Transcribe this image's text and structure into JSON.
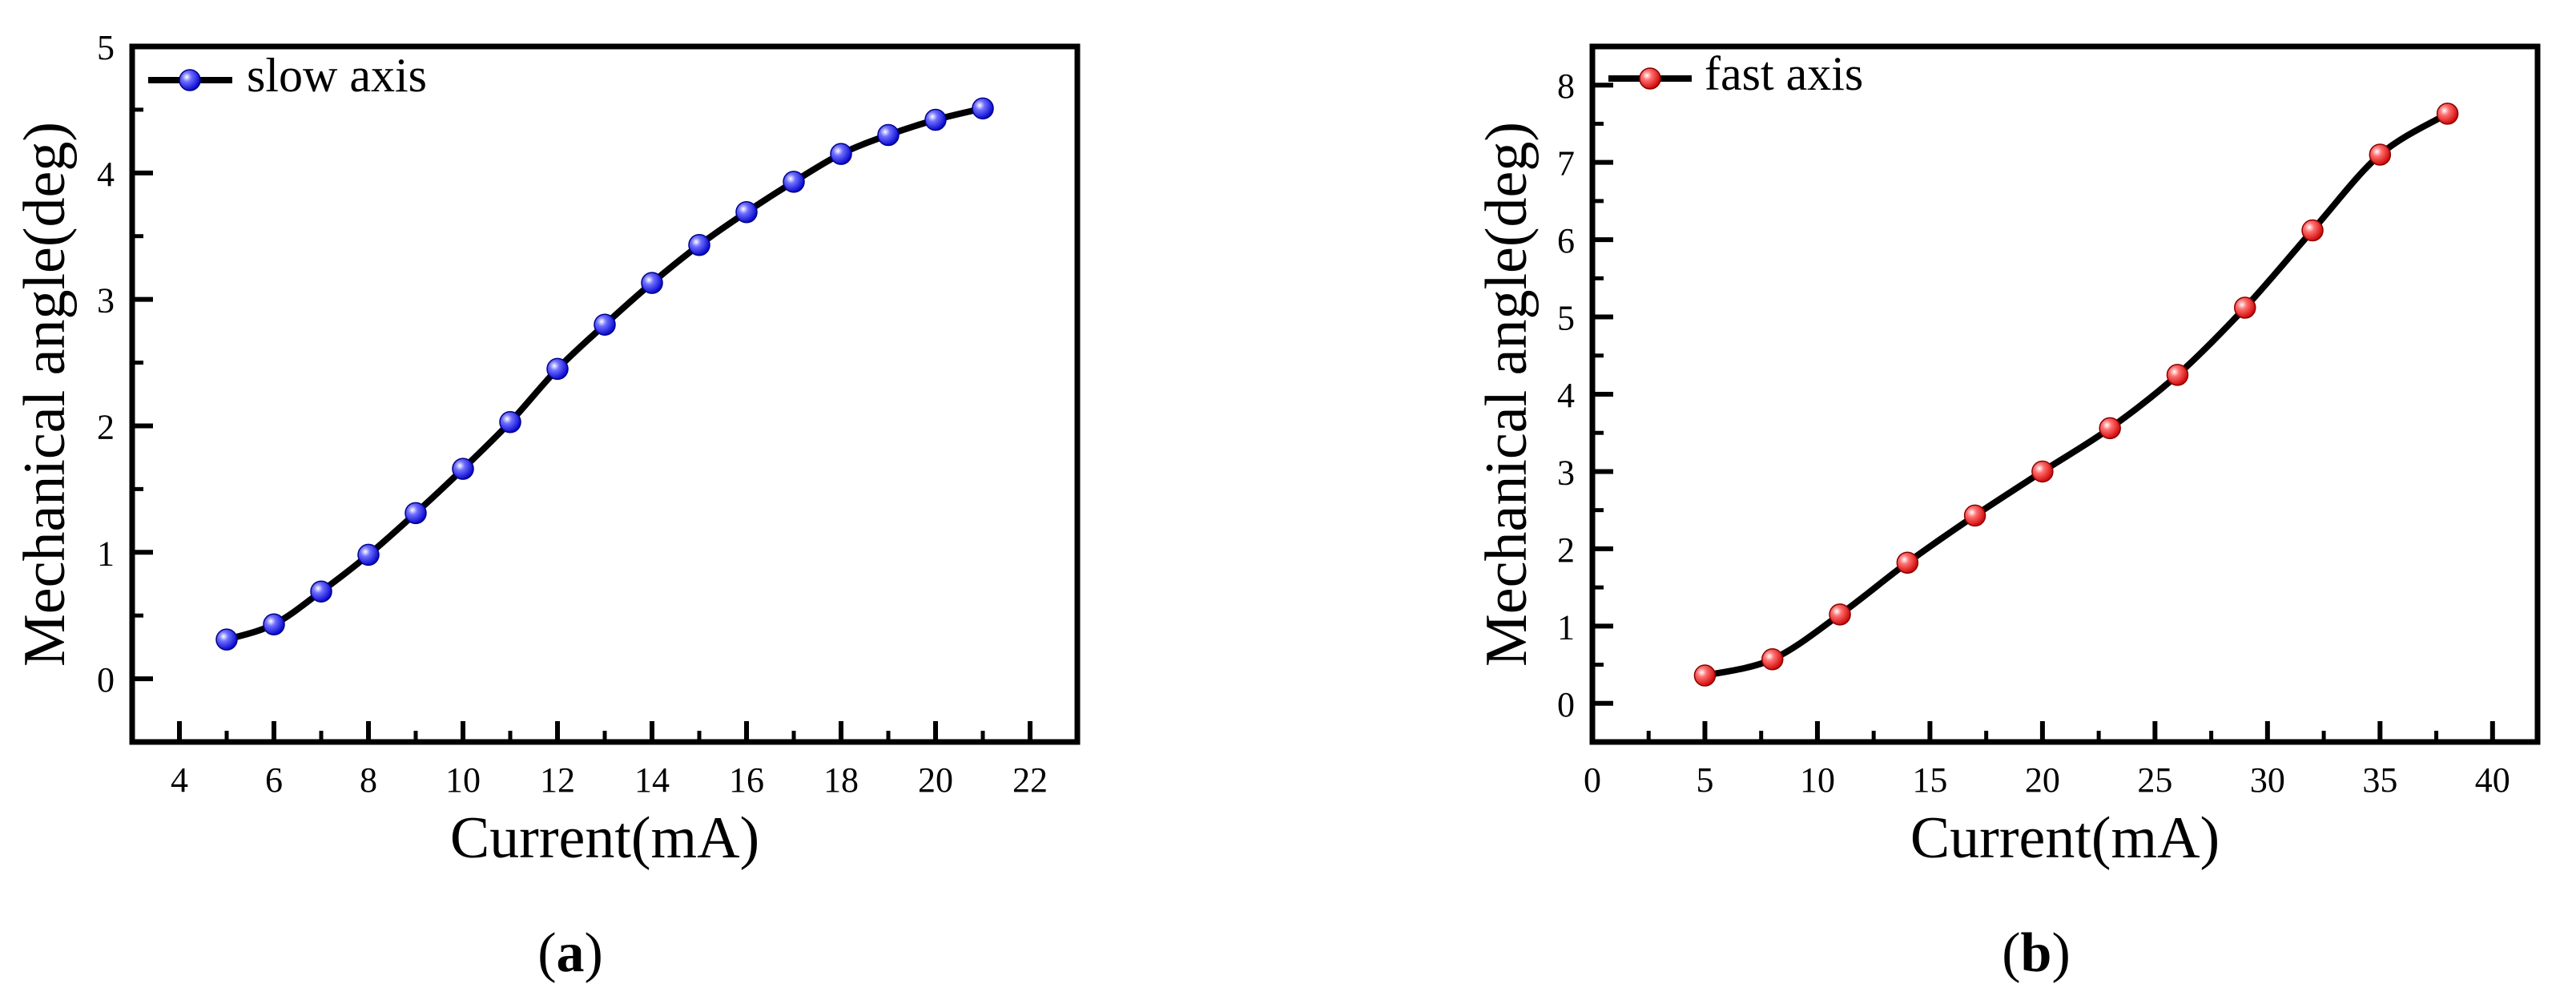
{
  "chart_data": [
    {
      "type": "line",
      "panel_label": "a",
      "xlabel": "Current(mA)",
      "ylabel": "Mechanical angle(deg)",
      "xlim": [
        3,
        23
      ],
      "ylim": [
        -0.5,
        5
      ],
      "xticks": [
        4,
        6,
        8,
        10,
        12,
        14,
        16,
        18,
        20,
        22
      ],
      "yticks": [
        0,
        1,
        2,
        3,
        4,
        5
      ],
      "legend_position": "top-left",
      "series": [
        {
          "name": "slow axis",
          "marker_color": "#1f1fff",
          "x": [
            5,
            6,
            7,
            8,
            9,
            10,
            11,
            12,
            13,
            14,
            15,
            16,
            17,
            18,
            19,
            20,
            21
          ],
          "y": [
            0.31,
            0.43,
            0.69,
            0.98,
            1.31,
            1.66,
            2.03,
            2.45,
            2.8,
            3.13,
            3.43,
            3.69,
            3.93,
            4.15,
            4.3,
            4.42,
            4.51
          ]
        }
      ]
    },
    {
      "type": "line",
      "panel_label": "b",
      "xlabel": "Current(mA)",
      "ylabel": "Mechanical angle(deg)",
      "xlim": [
        0,
        42
      ],
      "ylim": [
        -0.5,
        8.5
      ],
      "xticks": [
        0,
        5,
        10,
        15,
        20,
        25,
        30,
        35,
        40
      ],
      "yticks": [
        0,
        1,
        2,
        3,
        4,
        5,
        6,
        7,
        8
      ],
      "legend_position": "top-left",
      "series": [
        {
          "name": "fast axis",
          "marker_color": "#ff1f1f",
          "x": [
            5,
            8,
            11,
            14,
            17,
            20,
            23,
            26,
            29,
            32,
            35,
            38
          ],
          "y": [
            0.36,
            0.57,
            1.15,
            1.82,
            2.43,
            3.0,
            3.56,
            4.25,
            5.12,
            6.12,
            7.1,
            7.63
          ]
        }
      ]
    }
  ]
}
